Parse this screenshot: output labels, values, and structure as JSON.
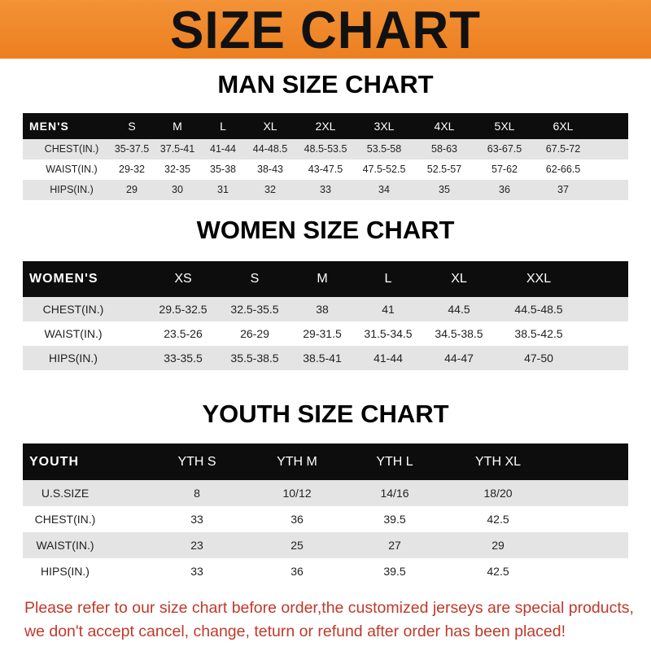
{
  "banner": {
    "title": "SIZE CHART",
    "color": "#ee8326"
  },
  "men": {
    "title": "MAN SIZE CHART",
    "headers": [
      "MEN'S",
      "S",
      "M",
      "L",
      "XL",
      "2XL",
      "3XL",
      "4XL",
      "5XL",
      "6XL"
    ],
    "rows": [
      [
        "CHEST(IN.)",
        "35-37.5",
        "37.5-41",
        "41-44",
        "44-48.5",
        "48.5-53.5",
        "53.5-58",
        "58-63",
        "63-67.5",
        "67.5-72"
      ],
      [
        "WAIST(IN.)",
        "29-32",
        "32-35",
        "35-38",
        "38-43",
        "43-47.5",
        "47.5-52.5",
        "52.5-57",
        "57-62",
        "62-66.5"
      ],
      [
        "HIPS(IN.)",
        "29",
        "30",
        "31",
        "32",
        "33",
        "34",
        "35",
        "36",
        "37"
      ]
    ]
  },
  "women": {
    "title": "WOMEN SIZE CHART",
    "headers": [
      "WOMEN'S",
      "XS",
      "S",
      "M",
      "L",
      "XL",
      "XXL"
    ],
    "rows": [
      [
        "CHEST(IN.)",
        "29.5-32.5",
        "32.5-35.5",
        "38",
        "41",
        "44.5",
        "44.5-48.5"
      ],
      [
        "WAIST(IN.)",
        "23.5-26",
        "26-29",
        "29-31.5",
        "31.5-34.5",
        "34.5-38.5",
        "38.5-42.5"
      ],
      [
        "HIPS(IN.)",
        "33-35.5",
        "35.5-38.5",
        "38.5-41",
        "41-44",
        "44-47",
        "47-50"
      ]
    ]
  },
  "youth": {
    "title": "YOUTH SIZE CHART",
    "headers": [
      "YOUTH",
      "YTH S",
      "YTH M",
      "YTH L",
      "YTH XL"
    ],
    "rows": [
      [
        "U.S.SIZE",
        "8",
        "10/12",
        "14/16",
        "18/20"
      ],
      [
        "CHEST(IN.)",
        "33",
        "36",
        "39.5",
        "42.5"
      ],
      [
        "WAIST(IN.)",
        "23",
        "25",
        "27",
        "29"
      ],
      [
        "HIPS(IN.)",
        "33",
        "36",
        "39.5",
        "42.5"
      ]
    ]
  },
  "footer": {
    "line1": "Please refer to our size chart before order,the customized jerseys are special products,",
    "line2": "we don't accept cancel, change, teturn or refund after order has been placed!",
    "color": "#c0392b"
  }
}
